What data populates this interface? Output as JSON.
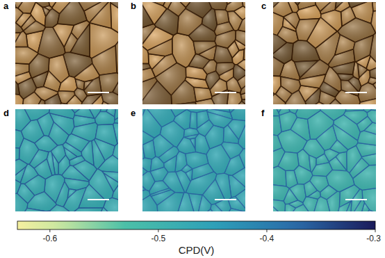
{
  "chart_data": {
    "type": "heatmap",
    "panels": [
      {
        "label": "a",
        "kind": "topography"
      },
      {
        "label": "b",
        "kind": "topography"
      },
      {
        "label": "c",
        "kind": "topography"
      },
      {
        "label": "d",
        "kind": "cpd",
        "grain_cpd": -0.48,
        "boundary_cpd": -0.36
      },
      {
        "label": "e",
        "kind": "cpd",
        "grain_cpd": -0.47,
        "boundary_cpd": -0.37
      },
      {
        "label": "f",
        "kind": "cpd",
        "grain_cpd": -0.5,
        "boundary_cpd": -0.37
      }
    ],
    "colorbar": {
      "label": "CPD(V)",
      "range": [
        -0.63,
        -0.3
      ],
      "ticks": [
        -0.6,
        -0.5,
        -0.4,
        -0.3
      ]
    }
  }
}
